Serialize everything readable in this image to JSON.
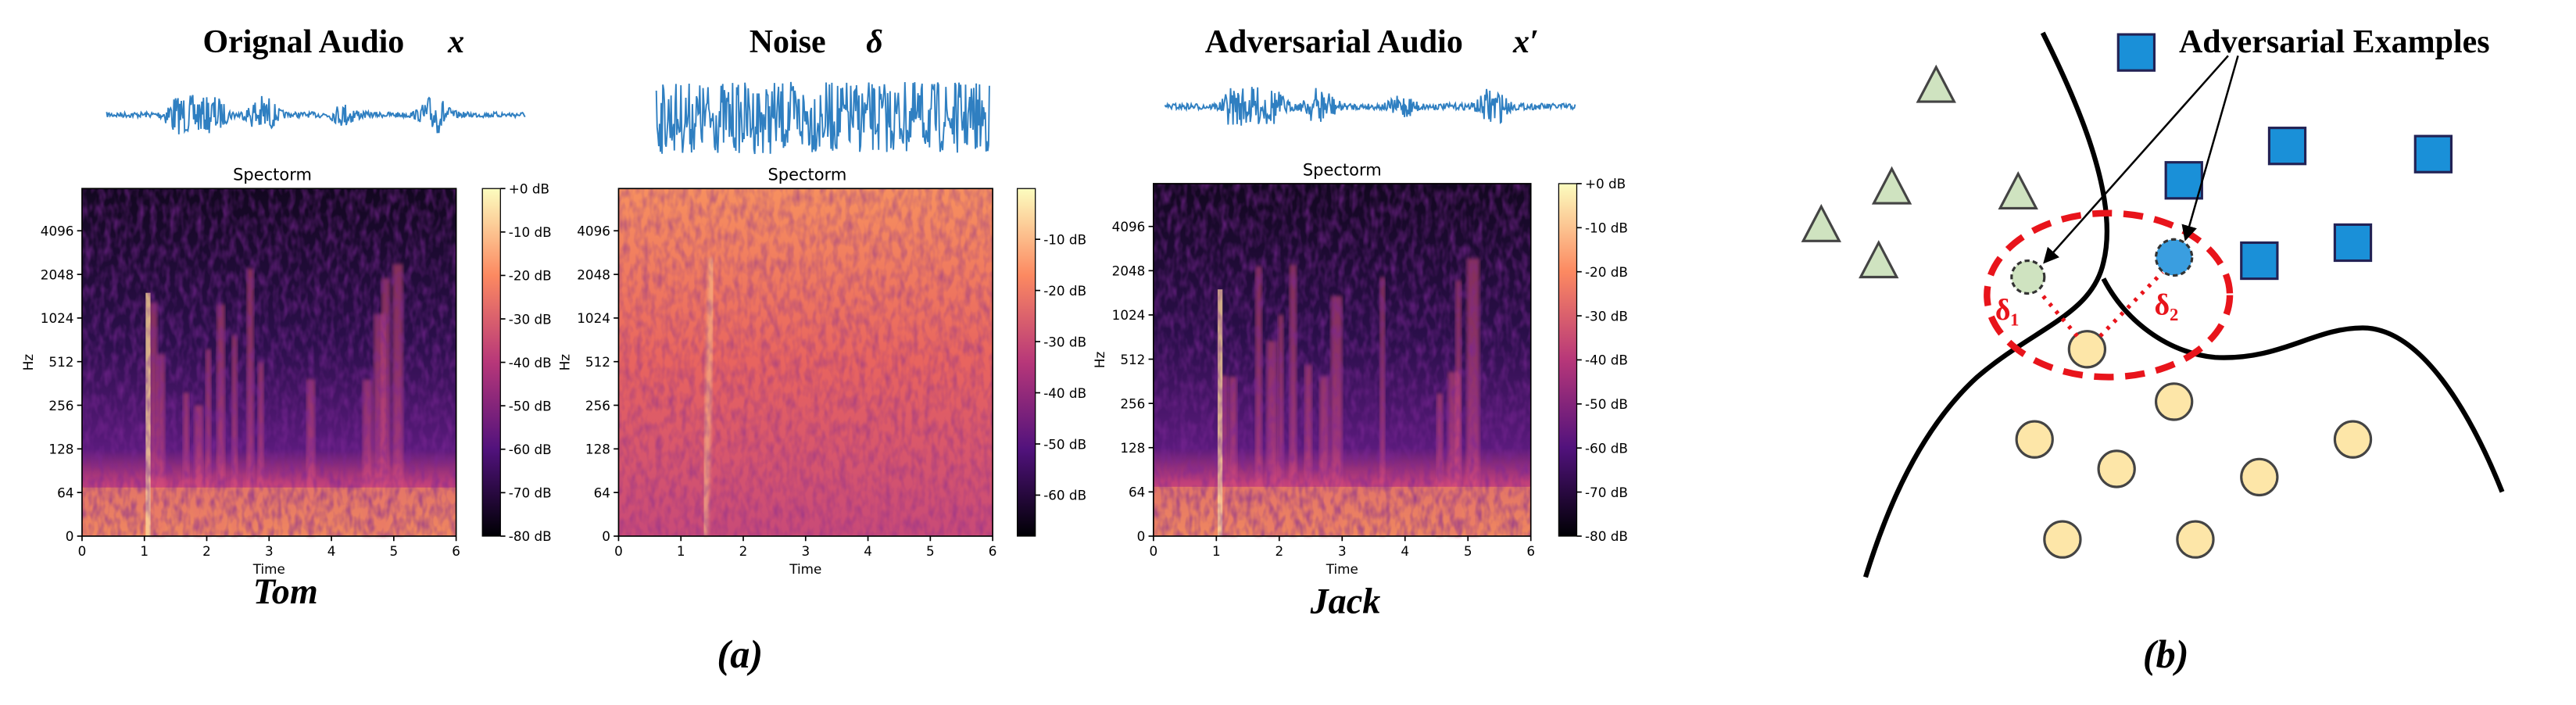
{
  "panel_a": {
    "label": "(a)",
    "spectrograms": [
      {
        "title": "Orignal Audio",
        "symbol": "x",
        "plot_title": "Spectorm",
        "y_label": "Hz",
        "x_label": "Time",
        "y_ticks": [
          0,
          64,
          128,
          256,
          512,
          1024,
          2048,
          4096
        ],
        "x_ticks": [
          0,
          1,
          2,
          3,
          4,
          5,
          6
        ],
        "colorbar_ticks": [
          "+0 dB",
          "-10 dB",
          "-20 dB",
          "-30 dB",
          "-40 dB",
          "-50 dB",
          "-60 dB",
          "-70 dB",
          "-80 dB"
        ],
        "speaker": "Tom"
      },
      {
        "title": "Noise",
        "symbol": "δ",
        "plot_title": "Spectorm",
        "y_label": "Hz",
        "x_label": "Time",
        "y_ticks": [
          0,
          64,
          128,
          256,
          512,
          1024,
          2048,
          4096
        ],
        "x_ticks": [
          0,
          1,
          2,
          3,
          4,
          5,
          6
        ],
        "colorbar_ticks": [
          "-10 dB",
          "-20 dB",
          "-30 dB",
          "-40 dB",
          "-50 dB",
          "-60 dB"
        ]
      },
      {
        "title": "Adversarial Audio",
        "symbol": "x′",
        "plot_title": "Spectorm",
        "y_label": "Hz",
        "x_label": "Time",
        "y_ticks": [
          0,
          64,
          128,
          256,
          512,
          1024,
          2048,
          4096
        ],
        "x_ticks": [
          0,
          1,
          2,
          3,
          4,
          5,
          6
        ],
        "colorbar_ticks": [
          "+0 dB",
          "-10 dB",
          "-20 dB",
          "-30 dB",
          "-40 dB",
          "-50 dB",
          "-60 dB",
          "-70 dB",
          "-80 dB"
        ],
        "speaker": "Jack"
      }
    ]
  },
  "panel_b": {
    "label": "(b)",
    "callout": "Adversarial Examples",
    "perturbations": [
      "δ₁",
      "δ₂"
    ]
  }
}
